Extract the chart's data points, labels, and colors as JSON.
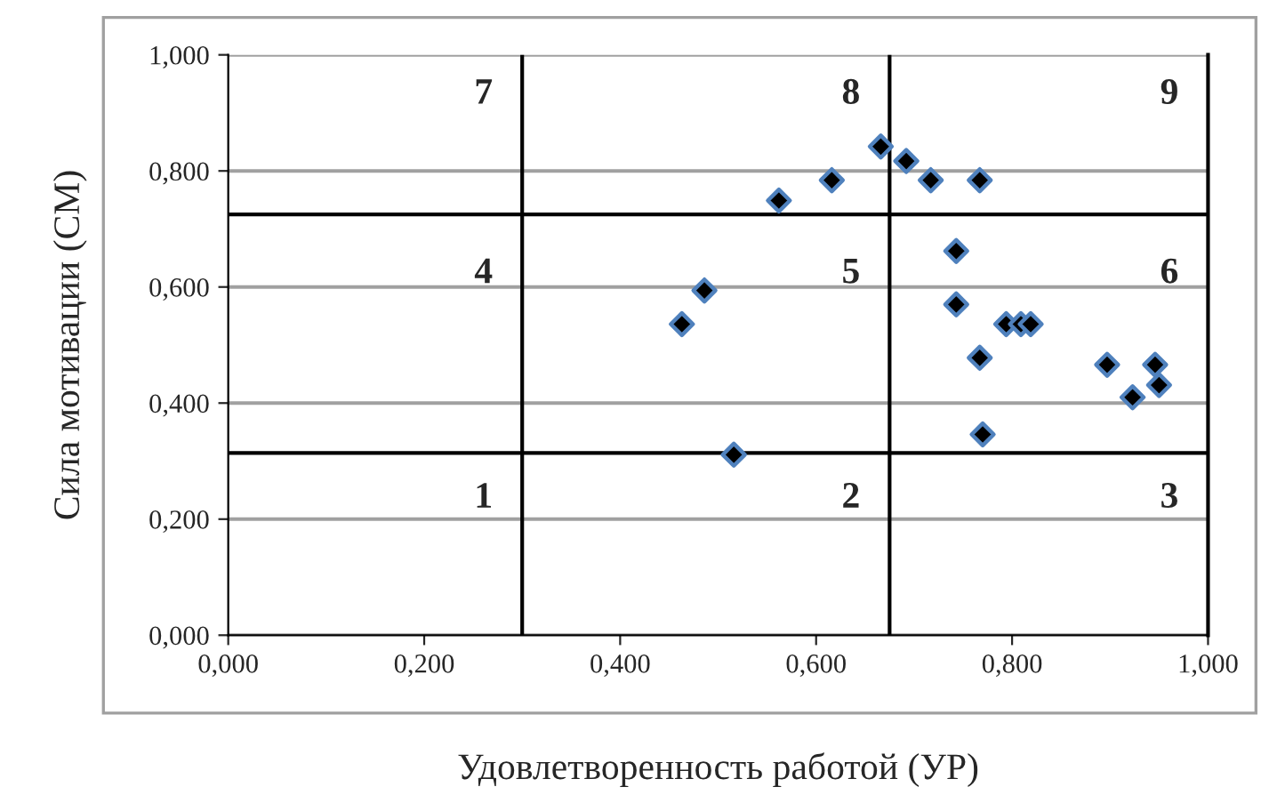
{
  "chart_data": {
    "type": "scatter",
    "xlabel": "Удовлетворенность работой (УР)",
    "ylabel": "Сила мотивации (СМ)",
    "xlim": [
      0,
      1
    ],
    "ylim": [
      0,
      1
    ],
    "xticks": [
      {
        "value": 0,
        "label": "0,000"
      },
      {
        "value": 0.2,
        "label": "0,200"
      },
      {
        "value": 0.4,
        "label": "0,400"
      },
      {
        "value": 0.6,
        "label": "0,600"
      },
      {
        "value": 0.8,
        "label": "0,800"
      },
      {
        "value": 1,
        "label": "1,000"
      }
    ],
    "yticks": [
      {
        "value": 0,
        "label": "0,000"
      },
      {
        "value": 0.2,
        "label": "0,200"
      },
      {
        "value": 0.4,
        "label": "0,400"
      },
      {
        "value": 0.6,
        "label": "0,600"
      },
      {
        "value": 0.8,
        "label": "0,800"
      },
      {
        "value": 1,
        "label": "1,000"
      }
    ],
    "grid": "y",
    "marker": "diamond",
    "series": [
      {
        "color": "#4f81bd",
        "x": [
          0.463,
          0.486,
          0.516,
          0.562,
          0.616,
          0.666,
          0.692,
          0.717,
          0.767,
          0.743,
          0.743,
          0.767,
          0.77,
          0.794,
          0.809,
          0.819,
          0.897,
          0.923,
          0.946,
          0.95
        ],
        "values": [
          0.536,
          0.594,
          0.311,
          0.749,
          0.784,
          0.842,
          0.817,
          0.784,
          0.784,
          0.662,
          0.57,
          0.478,
          0.346,
          0.536,
          0.536,
          0.536,
          0.466,
          0.41,
          0.466,
          0.431
        ]
      }
    ],
    "ref_lines": [
      {
        "axis": "x",
        "value": 0.3,
        "color": "#000000"
      },
      {
        "axis": "x",
        "value": 0.675,
        "color": "#000000"
      },
      {
        "axis": "y",
        "value": 0.314,
        "color": "#000000"
      },
      {
        "axis": "y",
        "value": 0.725,
        "color": "#000000"
      }
    ],
    "annotations": [
      "1",
      "2",
      "3",
      "4",
      "5",
      "6",
      "7",
      "8",
      "9"
    ]
  }
}
